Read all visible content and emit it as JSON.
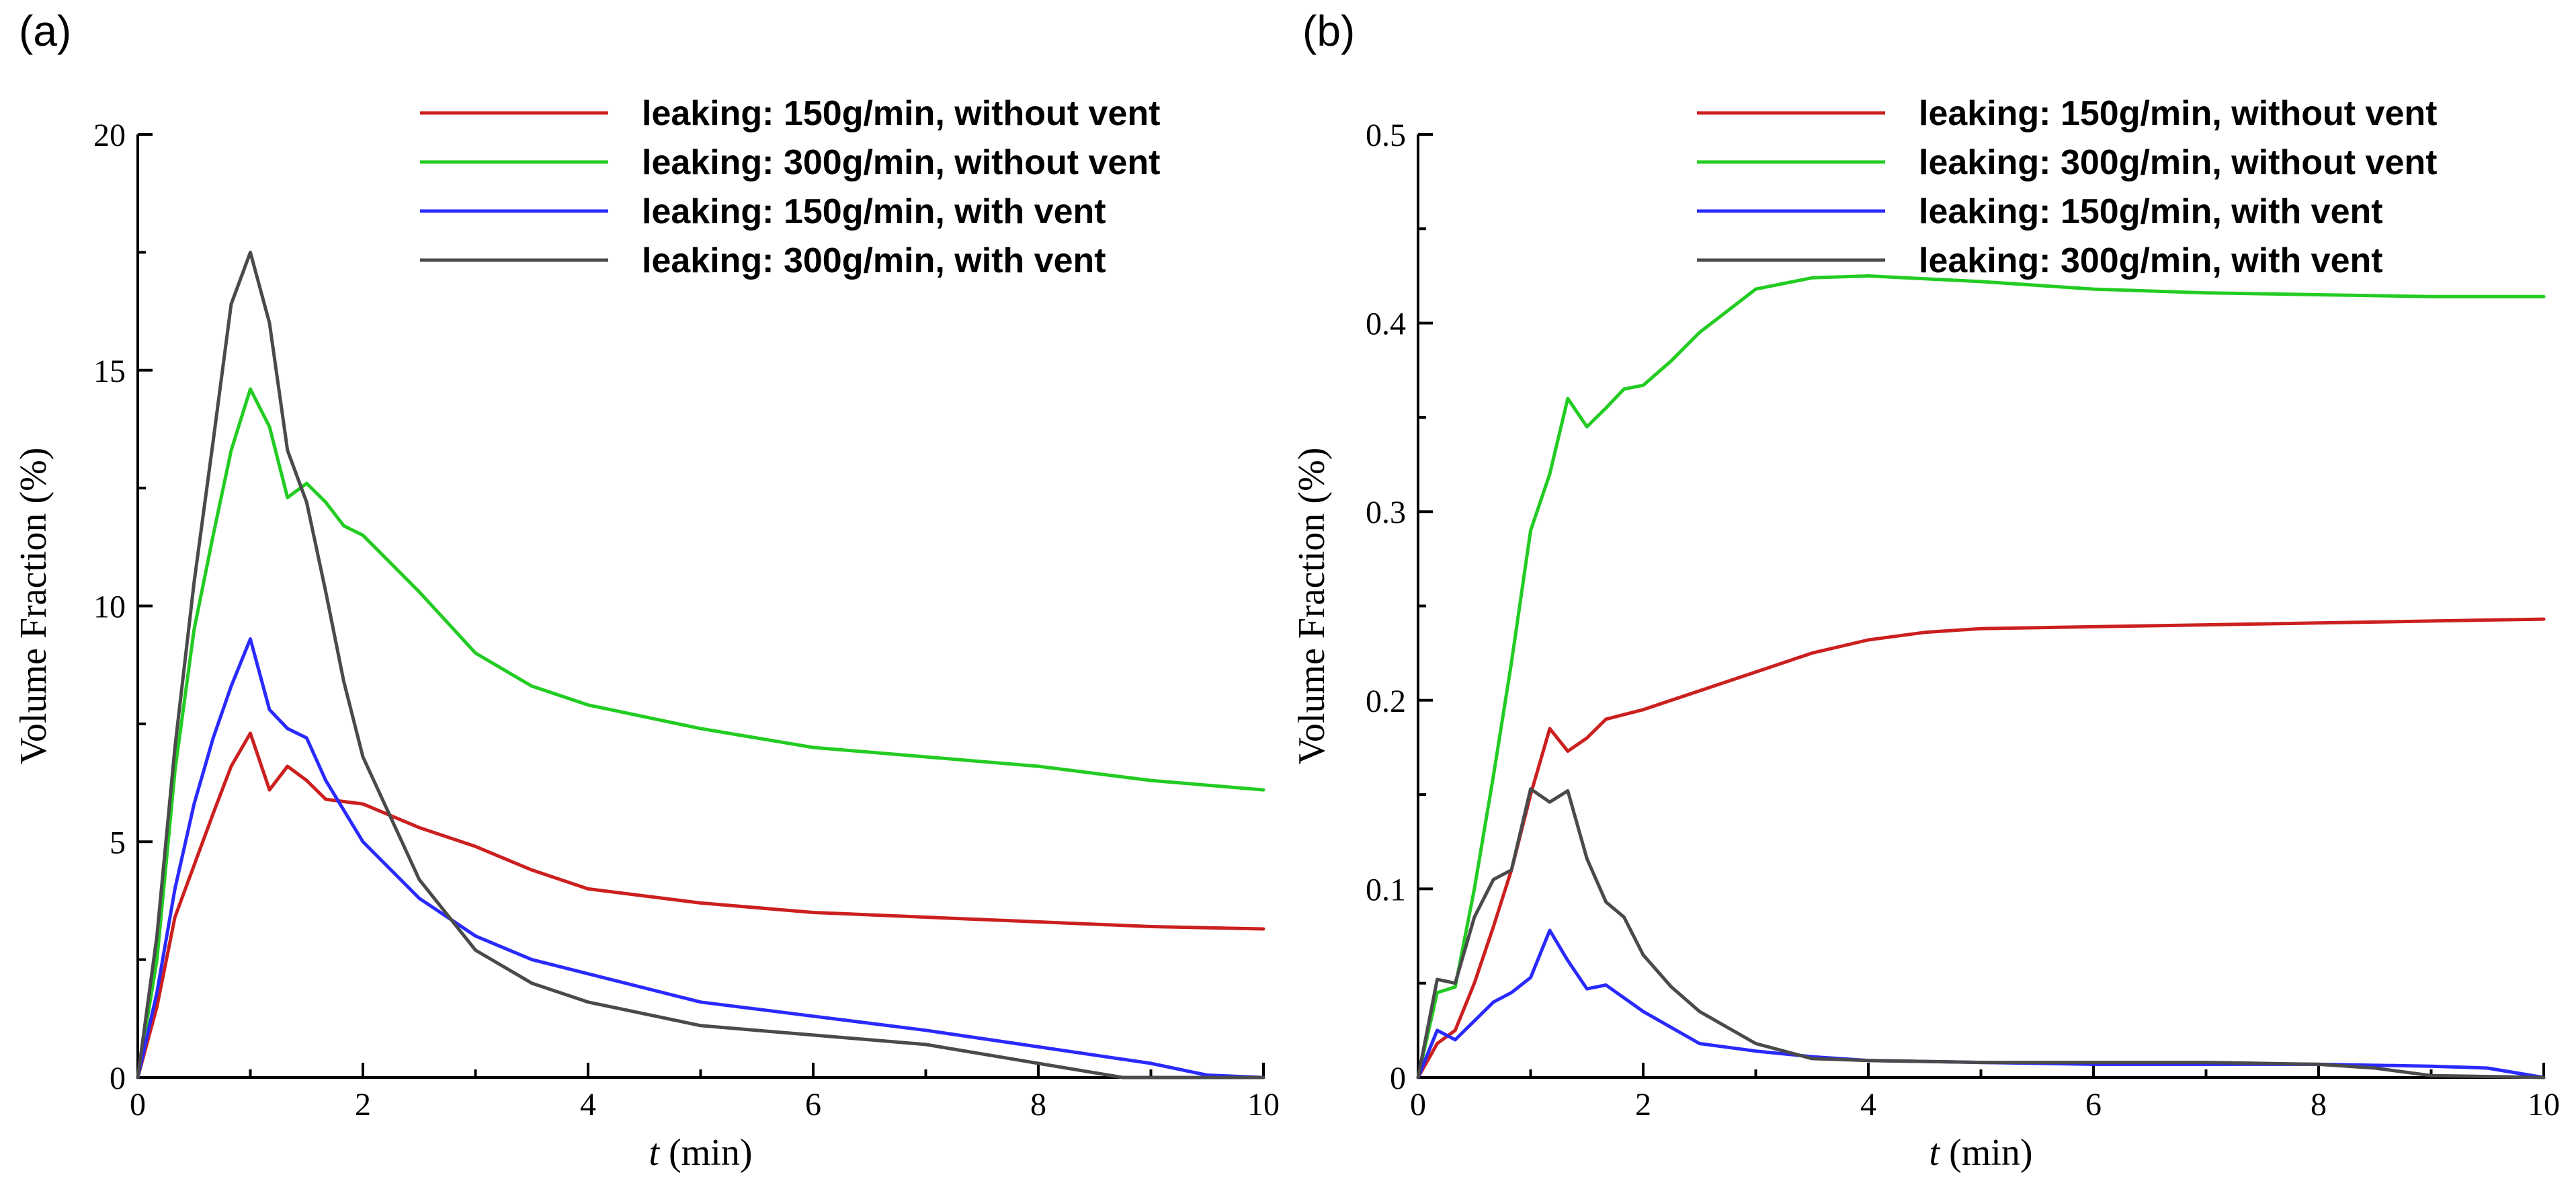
{
  "figure": {
    "panels": [
      "(a)",
      "(b)"
    ],
    "xlabel_var": "t",
    "xlabel_unit": " (min)",
    "ylabel": "Volume Fraction (%)"
  },
  "chart_data": [
    {
      "type": "line",
      "panel": "(a)",
      "xlabel": "t (min)",
      "ylabel": "Volume Fraction (%)",
      "xlim": [
        0,
        10
      ],
      "ylim": [
        0,
        20
      ],
      "xticks": [
        0,
        2,
        4,
        6,
        8,
        10
      ],
      "yticks": [
        0,
        5,
        10,
        15,
        20
      ],
      "xtick_labels": [
        "0",
        "2",
        "4",
        "6",
        "8",
        "10"
      ],
      "ytick_labels": [
        "0",
        "5",
        "10",
        "15",
        "20"
      ],
      "legend_position": "top-right",
      "series": [
        {
          "name": "leaking: 150g/min, without vent",
          "color": "#cc1f1f",
          "x": [
            0,
            0.17,
            0.33,
            0.5,
            0.67,
            0.83,
            1.0,
            1.17,
            1.33,
            1.5,
            1.67,
            2.0,
            2.5,
            3.0,
            3.5,
            4.0,
            5.0,
            6.0,
            7.0,
            8.0,
            9.0,
            10.0
          ],
          "y": [
            0,
            1.5,
            3.4,
            4.5,
            5.6,
            6.6,
            7.3,
            6.1,
            6.6,
            6.3,
            5.9,
            5.8,
            5.3,
            4.9,
            4.4,
            4.0,
            3.7,
            3.5,
            3.4,
            3.3,
            3.2,
            3.15
          ]
        },
        {
          "name": "leaking: 300g/min, without vent",
          "color": "#22cc22",
          "x": [
            0,
            0.17,
            0.33,
            0.5,
            0.67,
            0.83,
            1.0,
            1.17,
            1.33,
            1.5,
            1.67,
            1.83,
            2.0,
            2.5,
            3.0,
            3.5,
            4.0,
            5.0,
            6.0,
            7.0,
            8.0,
            9.0,
            10.0
          ],
          "y": [
            0,
            2.5,
            6.5,
            9.5,
            11.5,
            13.3,
            14.6,
            13.8,
            12.3,
            12.6,
            12.2,
            11.7,
            11.5,
            10.3,
            9.0,
            8.3,
            7.9,
            7.4,
            7.0,
            6.8,
            6.6,
            6.3,
            6.1
          ]
        },
        {
          "name": "leaking: 150g/min, with vent",
          "color": "#2a2aff",
          "x": [
            0,
            0.17,
            0.33,
            0.5,
            0.67,
            0.83,
            1.0,
            1.17,
            1.33,
            1.5,
            1.67,
            2.0,
            2.5,
            3.0,
            3.5,
            4.0,
            5.0,
            6.0,
            7.0,
            8.0,
            9.0,
            9.5,
            10.0
          ],
          "y": [
            0,
            1.8,
            4.0,
            5.8,
            7.2,
            8.3,
            9.3,
            7.8,
            7.4,
            7.2,
            6.3,
            5.0,
            3.8,
            3.0,
            2.5,
            2.2,
            1.6,
            1.3,
            1.0,
            0.65,
            0.3,
            0.05,
            0.0
          ]
        },
        {
          "name": "leaking: 300g/min, with vent",
          "color": "#4a4a4a",
          "x": [
            0,
            0.17,
            0.33,
            0.5,
            0.67,
            0.83,
            1.0,
            1.17,
            1.33,
            1.5,
            1.67,
            1.83,
            2.0,
            2.5,
            3.0,
            3.5,
            4.0,
            5.0,
            6.0,
            7.0,
            8.0,
            8.75,
            10.0
          ],
          "y": [
            0,
            3.0,
            7.0,
            10.5,
            13.5,
            16.4,
            17.5,
            16.0,
            13.3,
            12.2,
            10.3,
            8.4,
            6.8,
            4.2,
            2.7,
            2.0,
            1.6,
            1.1,
            0.9,
            0.7,
            0.3,
            0.0,
            0.0
          ]
        }
      ]
    },
    {
      "type": "line",
      "panel": "(b)",
      "xlabel": "t (min)",
      "ylabel": "Volume Fraction (%)",
      "xlim": [
        0,
        10
      ],
      "ylim": [
        0,
        0.5
      ],
      "xticks": [
        0,
        2,
        4,
        6,
        8,
        10
      ],
      "yticks": [
        0,
        0.1,
        0.2,
        0.3,
        0.4,
        0.5
      ],
      "xtick_labels": [
        "0",
        "2",
        "4",
        "6",
        "8",
        "10"
      ],
      "ytick_labels": [
        "0",
        "0.1",
        "0.2",
        "0.3",
        "0.4",
        "0.5"
      ],
      "legend_position": "top-right",
      "series": [
        {
          "name": "leaking: 150g/min, without vent",
          "color": "#cc1f1f",
          "x": [
            0,
            0.17,
            0.33,
            0.5,
            0.67,
            0.83,
            1.0,
            1.17,
            1.33,
            1.5,
            1.67,
            2.0,
            2.5,
            3.0,
            3.5,
            4.0,
            4.5,
            5.0,
            6.0,
            7.0,
            8.0,
            9.0,
            10.0
          ],
          "y": [
            0,
            0.018,
            0.025,
            0.05,
            0.08,
            0.11,
            0.15,
            0.185,
            0.173,
            0.18,
            0.19,
            0.195,
            0.205,
            0.215,
            0.225,
            0.232,
            0.236,
            0.238,
            0.239,
            0.24,
            0.241,
            0.242,
            0.243
          ]
        },
        {
          "name": "leaking: 300g/min, without vent",
          "color": "#22cc22",
          "x": [
            0,
            0.17,
            0.33,
            0.5,
            0.67,
            0.83,
            1.0,
            1.17,
            1.33,
            1.5,
            1.67,
            1.83,
            2.0,
            2.25,
            2.5,
            3.0,
            3.5,
            4.0,
            5.0,
            6.0,
            7.0,
            8.0,
            9.0,
            10.0
          ],
          "y": [
            0,
            0.045,
            0.048,
            0.1,
            0.16,
            0.22,
            0.29,
            0.32,
            0.36,
            0.345,
            0.355,
            0.365,
            0.367,
            0.38,
            0.395,
            0.418,
            0.424,
            0.425,
            0.422,
            0.418,
            0.416,
            0.415,
            0.414,
            0.414
          ]
        },
        {
          "name": "leaking: 150g/min, with vent",
          "color": "#2a2aff",
          "x": [
            0,
            0.17,
            0.33,
            0.5,
            0.67,
            0.83,
            1.0,
            1.17,
            1.33,
            1.5,
            1.67,
            2.0,
            2.5,
            3.0,
            3.5,
            4.0,
            5.0,
            6.0,
            7.0,
            8.0,
            9.0,
            9.5,
            10.0
          ],
          "y": [
            0,
            0.025,
            0.02,
            0.03,
            0.04,
            0.045,
            0.053,
            0.078,
            0.062,
            0.047,
            0.049,
            0.035,
            0.018,
            0.014,
            0.011,
            0.009,
            0.008,
            0.007,
            0.007,
            0.007,
            0.006,
            0.005,
            0.0
          ]
        },
        {
          "name": "leaking: 300g/min, with vent",
          "color": "#4a4a4a",
          "x": [
            0,
            0.17,
            0.33,
            0.5,
            0.67,
            0.83,
            1.0,
            1.17,
            1.33,
            1.5,
            1.67,
            1.83,
            2.0,
            2.25,
            2.5,
            3.0,
            3.5,
            4.0,
            5.0,
            6.0,
            7.0,
            8.0,
            8.5,
            9.0,
            10.0
          ],
          "y": [
            0,
            0.052,
            0.05,
            0.085,
            0.105,
            0.11,
            0.153,
            0.146,
            0.152,
            0.116,
            0.093,
            0.085,
            0.065,
            0.048,
            0.035,
            0.018,
            0.01,
            0.009,
            0.008,
            0.008,
            0.008,
            0.007,
            0.005,
            0.001,
            0.0
          ]
        }
      ]
    }
  ]
}
